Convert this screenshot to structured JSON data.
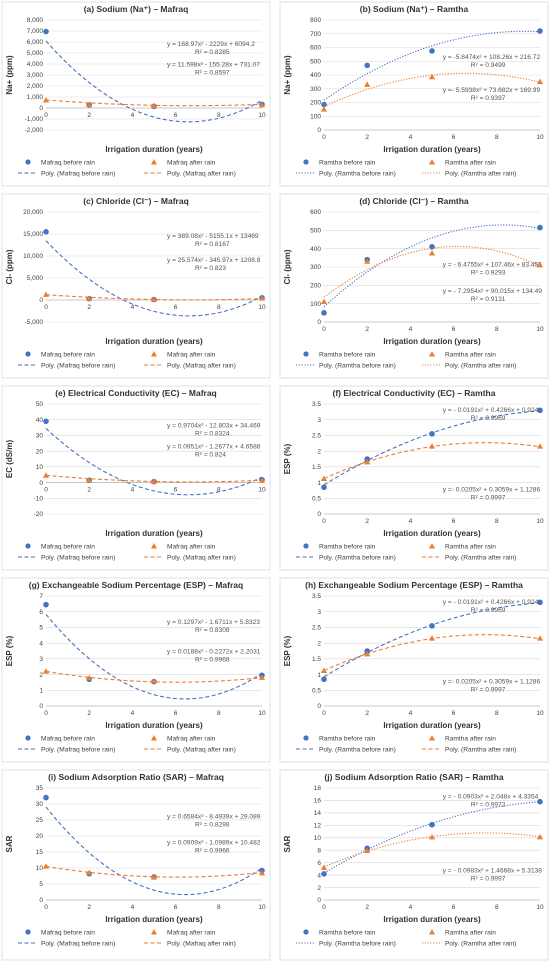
{
  "colors": {
    "before": "#4472C4",
    "after": "#ED7D31",
    "grid": "#d9d9d9"
  },
  "chart_data": [
    {
      "type": "scatter",
      "title": "(a) Sodium (Na⁺) – Mafraq",
      "xlabel": "Irrigation duration (years)",
      "ylabel": "Na+ (ppm)",
      "xlim": [
        0,
        10
      ],
      "ylim": [
        -2000,
        8000
      ],
      "yticks": [
        "8,000",
        "7,000",
        "6,000",
        "5,000",
        "4,000",
        "3,000",
        "2,000",
        "1,000",
        "0",
        "-1,000",
        "-2,000"
      ],
      "xticks": [
        "0",
        "2",
        "4",
        "6",
        "8",
        "10"
      ],
      "trend_style": "dashed",
      "series": [
        {
          "name": "Mafraq before rain",
          "x": [
            0,
            2,
            5,
            10
          ],
          "y": [
            6950,
            280,
            150,
            330
          ],
          "coef": [
            168.97,
            -2229,
            6094.2
          ],
          "eq": "y = 168.97x² - 2229x + 6094.2",
          "r2": "R² = 0.8285"
        },
        {
          "name": "Mafraq after rain",
          "x": [
            0,
            2,
            5,
            10
          ],
          "y": [
            700,
            280,
            180,
            260
          ],
          "coef": [
            11.598,
            -155.28,
            731.07
          ],
          "eq": "y = 11.598x² - 155.28x + 731.07",
          "r2": "R² = 0.8597"
        }
      ],
      "legend": [
        "Mafraq before rain",
        "Mafraq after rain",
        "Poly. (Mafraq before rain)",
        "Poly. (Mafraq after rain)"
      ]
    },
    {
      "type": "scatter",
      "title": "(b) Sodium (Na⁺) – Ramtha",
      "xlabel": "Irrigation duration (years)",
      "ylabel": "Na+ (ppm)",
      "xlim": [
        0,
        10
      ],
      "ylim": [
        0,
        800
      ],
      "yticks": [
        "800",
        "700",
        "600",
        "500",
        "400",
        "300",
        "200",
        "100",
        "0"
      ],
      "xticks": [
        "0",
        "2",
        "4",
        "6",
        "8",
        "10"
      ],
      "trend_style": "dotted",
      "series": [
        {
          "name": "Ramtha before rain",
          "x": [
            0,
            2,
            5,
            10
          ],
          "y": [
            185,
            470,
            575,
            720
          ],
          "coef": [
            -5.8474,
            108.26,
            216.72
          ],
          "eq": "y = -5.8474x² + 108.26x + 216.72",
          "r2": "R² = 0.9499"
        },
        {
          "name": "Ramtha after rain",
          "x": [
            0,
            2,
            5,
            10
          ],
          "y": [
            150,
            330,
            385,
            350
          ],
          "coef": [
            -5.5938,
            73.682,
            169.99
          ],
          "eq": "y =- 5.5938x² + 73.682x + 169.99",
          "r2": "R² = 0.9397"
        }
      ],
      "legend": [
        "Ramtha before rain",
        "Ramtha after rain",
        "Poly. (Ramtha before rain)",
        "Poly. (Ramtha after rain)"
      ]
    },
    {
      "type": "scatter",
      "title": "(c) Chloride (Cl⁻) – Mafraq",
      "xlabel": "Irrigation duration (years)",
      "ylabel": "Cl- (ppm)",
      "xlim": [
        0,
        10
      ],
      "ylim": [
        -5000,
        20000
      ],
      "yticks": [
        "20,000",
        "15,000",
        "10,000",
        "5,000",
        "0",
        "-5,000"
      ],
      "xticks": [
        "0",
        "2",
        "4",
        "6",
        "8",
        "10"
      ],
      "trend_style": "dashed",
      "series": [
        {
          "name": "Mafraq before rain",
          "x": [
            0,
            2,
            5,
            10
          ],
          "y": [
            15500,
            300,
            100,
            500
          ],
          "coef": [
            389.08,
            -5155.1,
            13469
          ],
          "eq": "y = 389.08x² - 5155.1x + 13469",
          "r2": "R² = 0.8167"
        },
        {
          "name": "Mafraq after rain",
          "x": [
            0,
            2,
            5,
            10
          ],
          "y": [
            1200,
            300,
            100,
            350
          ],
          "coef": [
            25.574,
            -345.97,
            1208.8
          ],
          "eq": "y = 25.574x² - 345.97x + 1208.8",
          "r2": "R² = 0.823"
        }
      ],
      "legend": [
        "Mafraq before rain",
        "Mafraq after rain",
        "Poly. (Mafraq before rain)",
        "Poly. (Mafraq after rain)"
      ]
    },
    {
      "type": "scatter",
      "title": "(d) Chloride (Cl⁻) – Ramtha",
      "xlabel": "Irrigation duration (years)",
      "ylabel": "Cl- (ppm)",
      "xlim": [
        0,
        10
      ],
      "ylim": [
        0,
        600
      ],
      "yticks": [
        "600",
        "500",
        "400",
        "300",
        "200",
        "100",
        "0"
      ],
      "xticks": [
        "0",
        "2",
        "4",
        "6",
        "8",
        "10"
      ],
      "trend_style": "dotted",
      "series": [
        {
          "name": "Ramtha before rain",
          "x": [
            0,
            2,
            5,
            10
          ],
          "y": [
            50,
            340,
            410,
            515
          ],
          "coef": [
            -6.4755,
            107.46,
            83.455
          ],
          "eq": "y = - 6.4755x² + 107.46x + 83.455",
          "r2": "R² = 0.9293"
        },
        {
          "name": "Ramtha after rain",
          "x": [
            0,
            2,
            5,
            10
          ],
          "y": [
            110,
            330,
            375,
            310
          ],
          "coef": [
            -7.2954,
            90.015,
            134.49
          ],
          "eq": "y = - 7.2954x² + 90.015x + 134.49",
          "r2": "R² = 0.9131"
        }
      ],
      "legend": [
        "Ramtha before rain",
        "Ramtha after rain",
        "Poly. (Ramtha before rain)",
        "Poly. (Ramtha after rain)"
      ]
    },
    {
      "type": "scatter",
      "title": "(e) Electrical Conductivity (EC) – Mafraq",
      "xlabel": "Irrigation duration (years)",
      "ylabel": "EC (dS/m)",
      "xlim": [
        0,
        10
      ],
      "ylim": [
        -20,
        50
      ],
      "yticks": [
        "50",
        "40",
        "30",
        "20",
        "10",
        "0",
        "-10",
        "-20"
      ],
      "xticks": [
        "0",
        "2",
        "4",
        "6",
        "8",
        "10"
      ],
      "trend_style": "dashed",
      "series": [
        {
          "name": "Mafraq before rain",
          "x": [
            0,
            2,
            5,
            10
          ],
          "y": [
            39,
            1.5,
            0.6,
            1.8
          ],
          "coef": [
            0.9704,
            -12.803,
            34.469
          ],
          "eq": "y = 0.9704x² - 12.803x + 34.469",
          "r2": "R² = 0.8324"
        },
        {
          "name": "Mafraq after rain",
          "x": [
            0,
            2,
            5,
            10
          ],
          "y": [
            4.5,
            1.5,
            0.6,
            1.2
          ],
          "coef": [
            0.0951,
            -1.2677,
            4.6588
          ],
          "eq": "y = 0.0951x² - 1.2677x + 4.6588",
          "r2": "R² = 0.824"
        }
      ],
      "legend": [
        "Mafraq before rain",
        "Mafraq after rain",
        "Poly. (Mafraq before rain)",
        "Poly. (Mafraq after rain)"
      ]
    },
    {
      "type": "scatter",
      "title": "(f) Electrical Conductivity (EC) – Ramtha",
      "xlabel": "Irrigation duration (years)",
      "ylabel": "ESP (%)",
      "xlim": [
        0,
        10
      ],
      "ylim": [
        0,
        3.5
      ],
      "yticks": [
        "3.5",
        "3",
        "2.5",
        "2",
        "1.5",
        "1",
        "0.5",
        "0"
      ],
      "xticks": [
        "0",
        "2",
        "4",
        "6",
        "8",
        "10"
      ],
      "trend_style": "dashed",
      "series": [
        {
          "name": "Ramtha before rain",
          "x": [
            0,
            2,
            5,
            10
          ],
          "y": [
            0.85,
            1.75,
            2.55,
            3.3
          ],
          "coef": [
            -0.0191,
            0.4266,
            0.924
          ],
          "eq": "y = - 0.0191x² + 0.4266x + 0.924",
          "r2": "R² = 0.9969"
        },
        {
          "name": "Ramtha after rain",
          "x": [
            0,
            2,
            5,
            10
          ],
          "y": [
            1.12,
            1.65,
            2.15,
            2.15
          ],
          "coef": [
            -0.0205,
            0.3059,
            1.1286
          ],
          "eq": "y =- 0.0205x² + 0.3059x + 1.1286",
          "r2": "R² = 0.9997"
        }
      ],
      "legend": [
        "Ramtha before rain",
        "Ramtha after rain",
        "Poly. (Ramtha before rain)",
        "Poly. (Ramtha after rain)"
      ]
    },
    {
      "type": "scatter",
      "title": "(g) Exchangeable Sodium Percentage (ESP) – Mafraq",
      "xlabel": "Irrigation duration (years)",
      "ylabel": "ESP (%)",
      "xlim": [
        0,
        10
      ],
      "ylim": [
        0,
        7
      ],
      "yticks": [
        "7",
        "6",
        "5",
        "4",
        "3",
        "2",
        "1",
        "0"
      ],
      "xticks": [
        "0",
        "2",
        "4",
        "6",
        "8",
        "10"
      ],
      "trend_style": "dashed",
      "series": [
        {
          "name": "Mafraq before rain",
          "x": [
            0,
            2,
            5,
            10
          ],
          "y": [
            6.45,
            1.7,
            1.55,
            1.95
          ],
          "coef": [
            0.1297,
            -1.6711,
            5.8323
          ],
          "eq": "y = 0.1297x² - 1.6711x + 5.8323",
          "r2": "R² = 0.8308"
        },
        {
          "name": "Mafraq after rain",
          "x": [
            0,
            2,
            5,
            10
          ],
          "y": [
            2.2,
            1.78,
            1.58,
            1.8
          ],
          "coef": [
            0.0188,
            -0.2272,
            2.2031
          ],
          "eq": "y = 0.0188x² - 0.2272x + 2.2031",
          "r2": "R² = 0.9968"
        }
      ],
      "legend": [
        "Mafraq before rain",
        "Mafraq after rain",
        "Poly. (Mafraq before rain)",
        "Poly. (Mafraq after rain)"
      ]
    },
    {
      "type": "scatter",
      "title": "(h) Exchangeable Sodium Percentage (ESP) – Ramtha",
      "xlabel": "Irrigation duration (years)",
      "ylabel": "ESP (%)",
      "xlim": [
        0,
        10
      ],
      "ylim": [
        0,
        3.5
      ],
      "yticks": [
        "3.5",
        "3",
        "2.5",
        "2",
        "1.5",
        "1",
        "0.5",
        "0"
      ],
      "xticks": [
        "0",
        "2",
        "4",
        "6",
        "8",
        "10"
      ],
      "trend_style": "dashed",
      "series": [
        {
          "name": "Ramtha before rain",
          "x": [
            0,
            2,
            5,
            10
          ],
          "y": [
            0.85,
            1.75,
            2.55,
            3.3
          ],
          "coef": [
            -0.0191,
            0.4266,
            0.924
          ],
          "eq": "y = - 0.0191x² + 0.4266x + 0.924",
          "r2": "R² = 0.9969"
        },
        {
          "name": "Ramtha after rain",
          "x": [
            0,
            2,
            5,
            10
          ],
          "y": [
            1.12,
            1.65,
            2.15,
            2.15
          ],
          "coef": [
            -0.0205,
            0.3059,
            1.1286
          ],
          "eq": "y =- 0.0205x² + 0.3059x + 1.1286",
          "r2": "R² = 0.9997"
        }
      ],
      "legend": [
        "Ramtha before rain",
        "Ramtha after rain",
        "Poly. (Ramtha before rain)",
        "Poly. (Ramtha after rain)"
      ]
    },
    {
      "type": "scatter",
      "title": "(i) Sodium Adsorption Ratio (SAR) – Mafraq",
      "xlabel": "Irrigation duration (years)",
      "ylabel": "SAR",
      "xlim": [
        0,
        10
      ],
      "ylim": [
        0,
        35
      ],
      "yticks": [
        "35",
        "30",
        "25",
        "20",
        "15",
        "10",
        "5",
        "0"
      ],
      "xticks": [
        "0",
        "2",
        "4",
        "6",
        "8",
        "10"
      ],
      "trend_style": "dashed",
      "series": [
        {
          "name": "Mafraq before rain",
          "x": [
            0,
            2,
            5,
            10
          ],
          "y": [
            32,
            8.2,
            7.2,
            9.2
          ],
          "coef": [
            0.6584,
            -8.4939,
            29.089
          ],
          "eq": "y = 0.6584x² - 8.4939x + 29.089",
          "r2": "R² = 0.8298"
        },
        {
          "name": "Mafraq after rain",
          "x": [
            0,
            2,
            5,
            10
          ],
          "y": [
            10.5,
            8.5,
            7.1,
            8.4
          ],
          "coef": [
            0.0909,
            -1.0989,
            10.482
          ],
          "eq": "y = 0.0909x² - 1.0989x + 10.482",
          "r2": "R² = 0.9966"
        }
      ],
      "legend": [
        "Mafraq before rain",
        "Mafraq after rain",
        "Poly. (Mafraq before rain)",
        "Poly. (Mafraq after rain)"
      ]
    },
    {
      "type": "scatter",
      "title": "(j) Sodium Adsorption Ratio (SAR) – Ramtha",
      "xlabel": "Irrigation duration (years)",
      "ylabel": "SAR",
      "xlim": [
        0,
        10
      ],
      "ylim": [
        0,
        18
      ],
      "yticks": [
        "18",
        "16",
        "14",
        "12",
        "10",
        "8",
        "6",
        "4",
        "2",
        "0"
      ],
      "xticks": [
        "0",
        "2",
        "4",
        "6",
        "8",
        "10"
      ],
      "trend_style": "dotted",
      "series": [
        {
          "name": "Ramtha before rain",
          "x": [
            0,
            2,
            5,
            10
          ],
          "y": [
            4.2,
            8.3,
            12.1,
            15.8
          ],
          "coef": [
            -0.0903,
            2.048,
            4.3354
          ],
          "eq": "y = - 0.0903x² + 2.048x + 4.3354",
          "r2": "R² = 0.9972"
        },
        {
          "name": "Ramtha after rain",
          "x": [
            0,
            2,
            5,
            10
          ],
          "y": [
            5.2,
            7.9,
            10.1,
            10.1
          ],
          "coef": [
            -0.0983,
            1.4668,
            5.3138
          ],
          "eq": "y = - 0.0983x² + 1.4668x + 5.3138",
          "r2": "R² = 0.9997"
        }
      ],
      "legend": [
        "Ramtha before rain",
        "Ramtha after rain",
        "Poly. (Ramtha before rain)",
        "Poly. (Ramtha after rain)"
      ]
    }
  ]
}
